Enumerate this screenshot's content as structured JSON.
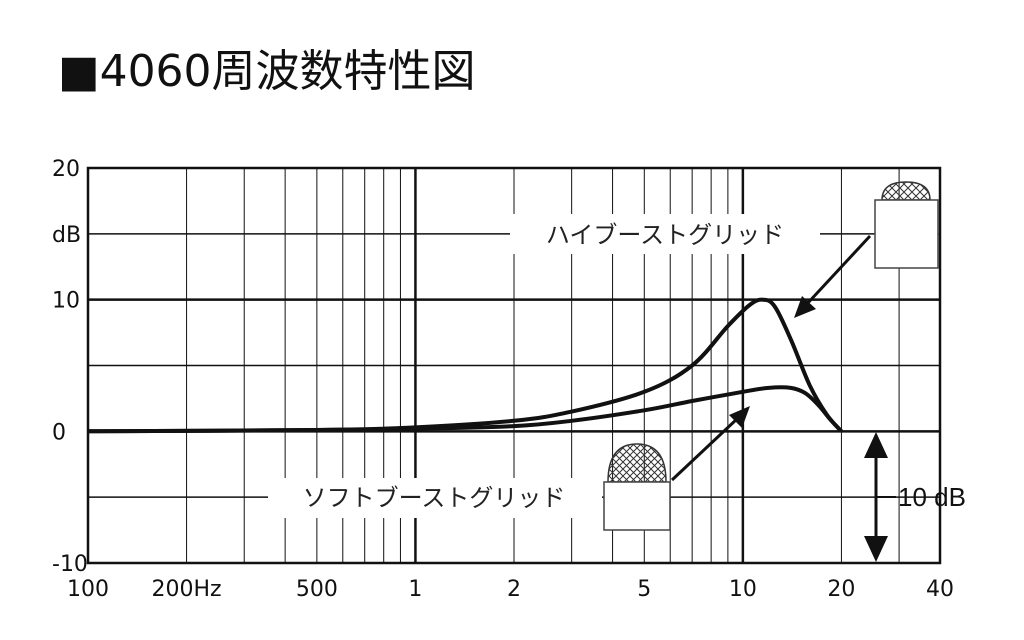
{
  "title": "■4060周波数特性図",
  "chart_data": {
    "type": "line",
    "title": "■4060周波数特性図",
    "xscale": "log",
    "xlim": [
      100,
      40000
    ],
    "ylim": [
      -10,
      20
    ],
    "grid": true,
    "x_ticks": [
      {
        "value": 100,
        "label": "100"
      },
      {
        "value": 200,
        "label": "200Hz"
      },
      {
        "value": 500,
        "label": "500"
      },
      {
        "value": 1000,
        "label": "1"
      },
      {
        "value": 2000,
        "label": "2"
      },
      {
        "value": 5000,
        "label": "5"
      },
      {
        "value": 10000,
        "label": "10"
      },
      {
        "value": 20000,
        "label": "20"
      },
      {
        "value": 40000,
        "label": "40"
      }
    ],
    "y_ticks": [
      {
        "value": 20,
        "label": "20"
      },
      {
        "value": 15,
        "label": "dB"
      },
      {
        "value": 10,
        "label": "10"
      },
      {
        "value": 0,
        "label": "0"
      },
      {
        "value": -10,
        "label": "-10"
      }
    ],
    "series": [
      {
        "name": "ハイブーストグリッド",
        "x": [
          100,
          500,
          1000,
          2000,
          3000,
          5000,
          7000,
          9000,
          10500,
          11500,
          12500,
          14000,
          16000,
          18000,
          20000
        ],
        "y": [
          0,
          0.1,
          0.3,
          0.8,
          1.5,
          3.0,
          5.0,
          8.0,
          9.6,
          10.0,
          9.5,
          7.0,
          3.5,
          1.3,
          0
        ]
      },
      {
        "name": "ソフトブーストグリッド",
        "x": [
          100,
          500,
          1000,
          2000,
          3000,
          5000,
          7000,
          10000,
          12000,
          14000,
          15500,
          17000,
          18500,
          20000
        ],
        "y": [
          0,
          0.1,
          0.2,
          0.4,
          0.8,
          1.6,
          2.3,
          3.0,
          3.3,
          3.3,
          2.9,
          2.0,
          0.9,
          0
        ]
      }
    ],
    "annotations": [
      {
        "text": "ハイブーストグリッド",
        "target": "high-boost"
      },
      {
        "text": "ソフトブーストグリッド",
        "target": "soft-boost"
      },
      {
        "text": "10 dB",
        "target": "scale-bar"
      }
    ]
  }
}
